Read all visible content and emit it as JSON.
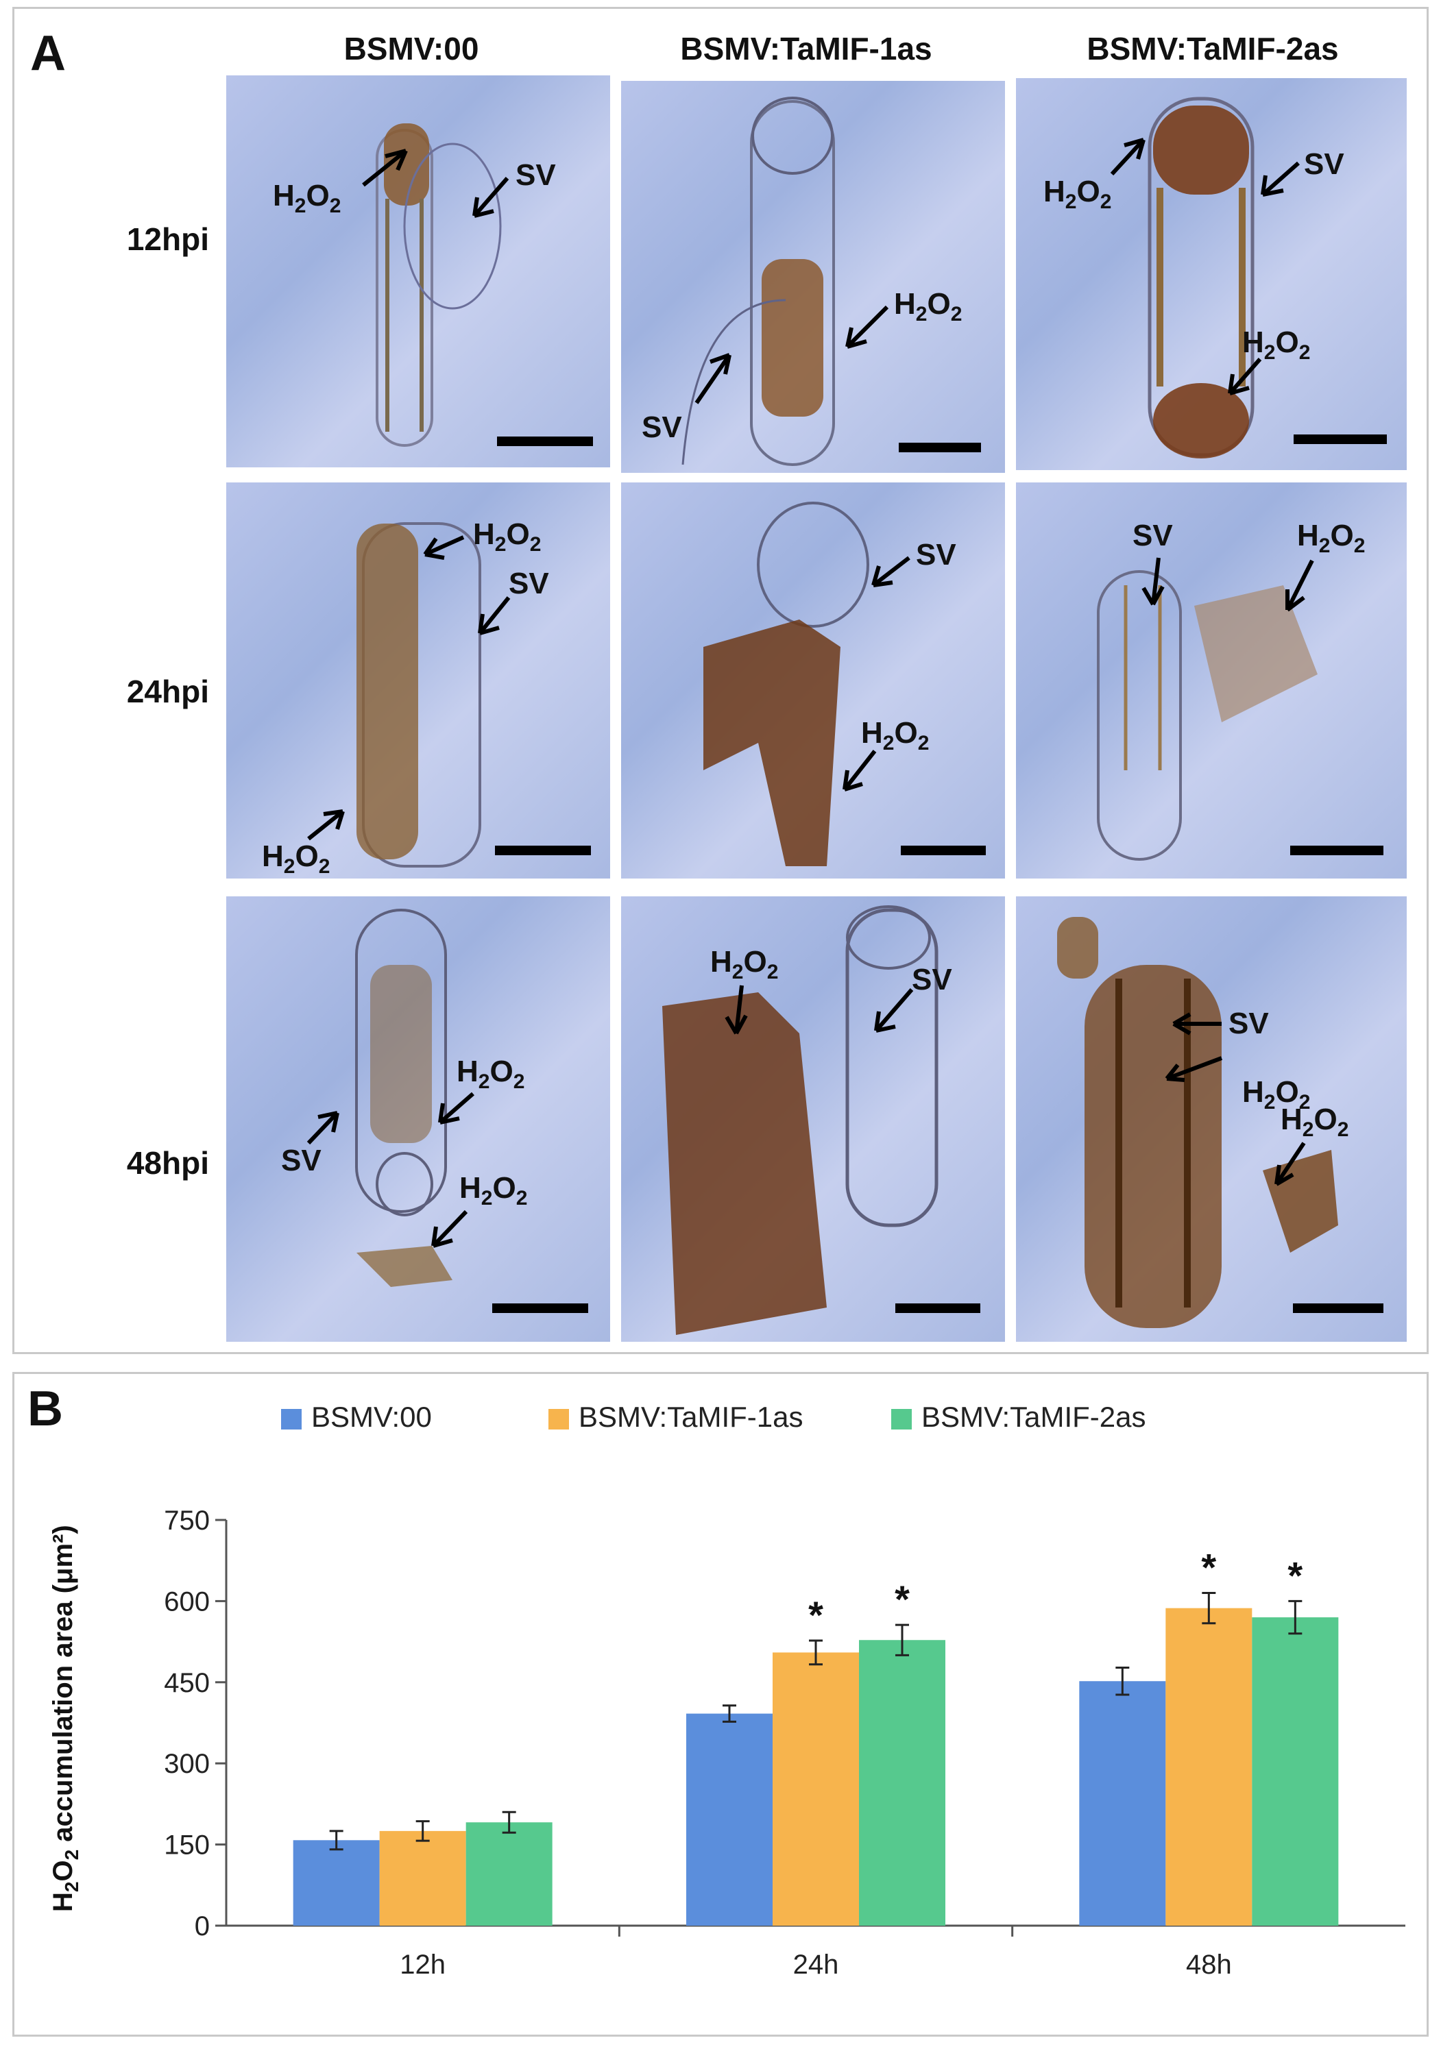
{
  "panelA": {
    "letter": "A",
    "columns": [
      "BSMV:00",
      "BSMV:TaMIF-1as",
      "BSMV:TaMIF-2as"
    ],
    "rows": [
      "12hpi",
      "24hpi",
      "48hpi"
    ],
    "labels": {
      "h2o2_main": "H",
      "h2o2_sub1": "2",
      "h2o2_mid": "O",
      "h2o2_sub2": "2",
      "sv": "SV"
    }
  },
  "panelB": {
    "letter": "B",
    "ylabel_main": "H",
    "ylabel_sub1": "2",
    "ylabel_mid": "O",
    "ylabel_sub2": "2",
    "ylabel_rest": " accumulation area (μm²)"
  },
  "chart_data": {
    "type": "bar",
    "categories": [
      "12h",
      "24h",
      "48h"
    ],
    "series": [
      {
        "name": "BSMV:00",
        "color": "#5b8edc",
        "values": [
          158,
          392,
          452
        ],
        "errors": [
          17,
          15,
          25
        ]
      },
      {
        "name": "BSMV:TaMIF-1as",
        "color": "#f7b44d",
        "values": [
          175,
          505,
          587
        ],
        "errors": [
          18,
          22,
          28
        ]
      },
      {
        "name": "BSMV:TaMIF-2as",
        "color": "#56c98e",
        "values": [
          191,
          528,
          570
        ],
        "errors": [
          19,
          28,
          30
        ]
      }
    ],
    "significant": [
      [
        false,
        false,
        false
      ],
      [
        false,
        true,
        true
      ],
      [
        false,
        true,
        true
      ]
    ],
    "significance_mark": "*",
    "ylim": [
      0,
      750
    ],
    "yticks": [
      0,
      150,
      300,
      450,
      600,
      750
    ],
    "legend": "top",
    "grid": false
  }
}
